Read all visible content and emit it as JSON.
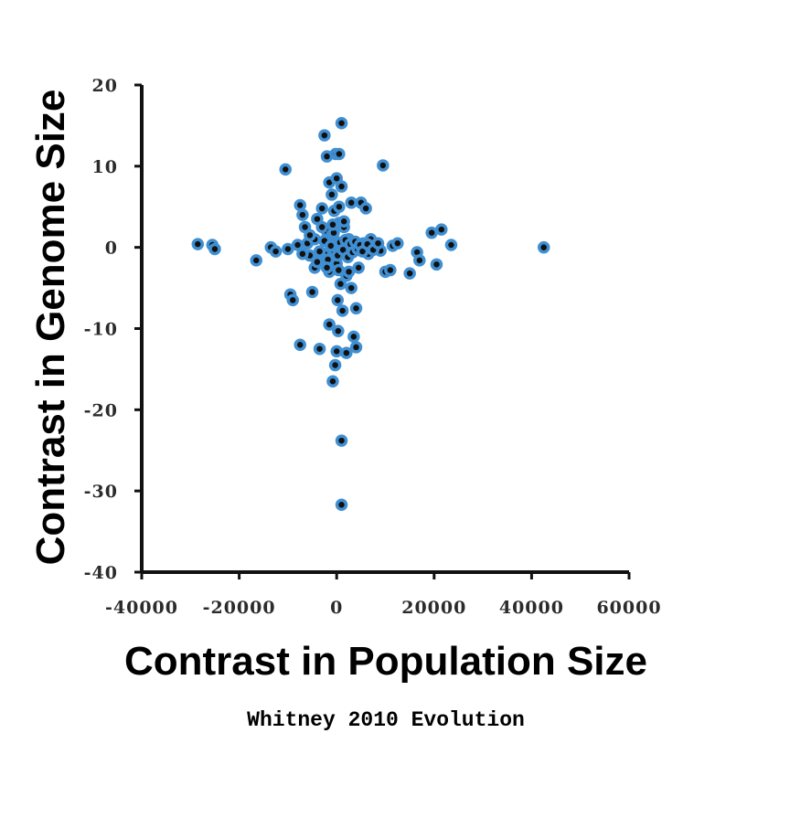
{
  "chart_data": {
    "type": "scatter",
    "title": "",
    "xlabel": "Contrast in Population Size",
    "ylabel": "Contrast in Genome Size",
    "xlim": [
      -40000,
      60000
    ],
    "ylim": [
      -40,
      20
    ],
    "xticks": [
      -40000,
      -20000,
      0,
      20000,
      40000,
      60000
    ],
    "yticks": [
      20,
      10,
      0,
      -10,
      -20,
      -30,
      -40
    ],
    "xtick_labels": [
      "-40000",
      "-20000",
      "0",
      "20000",
      "40000",
      "60000"
    ],
    "ytick_labels": [
      "20",
      "10",
      "0",
      "-10",
      "-20",
      "-30",
      "-40"
    ],
    "grid": false,
    "marker_fill": "#111111",
    "marker_edge": "#3f8fd2",
    "points": [
      [
        -28500,
        0.4
      ],
      [
        -25500,
        0.3
      ],
      [
        -25000,
        -0.2
      ],
      [
        -16500,
        -1.6
      ],
      [
        -13500,
        0.0
      ],
      [
        -12500,
        -0.5
      ],
      [
        -10500,
        9.6
      ],
      [
        -10000,
        -0.2
      ],
      [
        -9500,
        -5.8
      ],
      [
        -9000,
        -6.5
      ],
      [
        -7500,
        -12.0
      ],
      [
        -7500,
        5.2
      ],
      [
        -7000,
        4.0
      ],
      [
        -6500,
        2.5
      ],
      [
        -6000,
        0.5
      ],
      [
        -5500,
        -1.0
      ],
      [
        -5000,
        -5.5
      ],
      [
        -4500,
        -2.5
      ],
      [
        -4000,
        3.5
      ],
      [
        -3500,
        -12.5
      ],
      [
        -3000,
        4.8
      ],
      [
        -2500,
        13.8
      ],
      [
        -2500,
        -0.8
      ],
      [
        -2000,
        11.2
      ],
      [
        -2000,
        2.0
      ],
      [
        -1500,
        -9.5
      ],
      [
        -1500,
        -3.0
      ],
      [
        -1500,
        8.0
      ],
      [
        -1000,
        6.5
      ],
      [
        -1000,
        1.5
      ],
      [
        -800,
        -16.5
      ],
      [
        -500,
        -0.5
      ],
      [
        -500,
        4.5
      ],
      [
        -300,
        -14.5
      ],
      [
        -200,
        11.5
      ],
      [
        0,
        -12.8
      ],
      [
        0,
        8.5
      ],
      [
        0,
        -2.0
      ],
      [
        0,
        0.5
      ],
      [
        200,
        -6.5
      ],
      [
        300,
        -10.3
      ],
      [
        500,
        11.5
      ],
      [
        500,
        5.0
      ],
      [
        500,
        3.0
      ],
      [
        800,
        -4.5
      ],
      [
        1000,
        15.3
      ],
      [
        1000,
        -23.8
      ],
      [
        1000,
        -31.7
      ],
      [
        1000,
        7.5
      ],
      [
        1200,
        -7.8
      ],
      [
        1500,
        -0.8
      ],
      [
        1500,
        2.5
      ],
      [
        2000,
        -3.5
      ],
      [
        2000,
        -13.0
      ],
      [
        2500,
        1.0
      ],
      [
        3000,
        5.5
      ],
      [
        3000,
        -5.0
      ],
      [
        3500,
        -11.0
      ],
      [
        4000,
        -12.3
      ],
      [
        4000,
        -7.5
      ],
      [
        4500,
        -2.5
      ],
      [
        5000,
        5.5
      ],
      [
        5500,
        0.5
      ],
      [
        6000,
        4.8
      ],
      [
        6500,
        -0.8
      ],
      [
        7000,
        1.0
      ],
      [
        8000,
        0.3
      ],
      [
        9000,
        -0.4
      ],
      [
        9500,
        10.1
      ],
      [
        10000,
        -3.0
      ],
      [
        11000,
        -2.8
      ],
      [
        11500,
        0.2
      ],
      [
        12500,
        0.5
      ],
      [
        15000,
        -3.2
      ],
      [
        16500,
        -0.6
      ],
      [
        17000,
        -1.6
      ],
      [
        19500,
        1.8
      ],
      [
        20500,
        -2.1
      ],
      [
        21500,
        2.2
      ],
      [
        23500,
        0.3
      ],
      [
        42500,
        0.0
      ],
      [
        -4500,
        1.0
      ],
      [
        -3500,
        -0.5
      ],
      [
        -2500,
        0.8
      ],
      [
        -1800,
        -1.5
      ],
      [
        -1200,
        0.2
      ],
      [
        -600,
        1.8
      ],
      [
        200,
        -1.0
      ],
      [
        700,
        0.6
      ],
      [
        1300,
        -0.3
      ],
      [
        1800,
        0.9
      ],
      [
        2300,
        -1.2
      ],
      [
        2800,
        0.4
      ],
      [
        3300,
        -0.6
      ],
      [
        3800,
        0.7
      ],
      [
        4300,
        -0.2
      ],
      [
        4800,
        0.3
      ],
      [
        5300,
        -0.5
      ],
      [
        6300,
        0.4
      ],
      [
        7500,
        -0.3
      ],
      [
        8500,
        0.5
      ],
      [
        -8000,
        0.3
      ],
      [
        -7000,
        -0.8
      ],
      [
        -5500,
        1.5
      ],
      [
        -4000,
        -1.8
      ],
      [
        -3000,
        2.5
      ],
      [
        -2000,
        -2.5
      ],
      [
        -800,
        2.8
      ],
      [
        400,
        -2.8
      ],
      [
        1500,
        3.2
      ],
      [
        2500,
        -3.0
      ]
    ],
    "credit": "Whitney 2010 Evolution"
  }
}
